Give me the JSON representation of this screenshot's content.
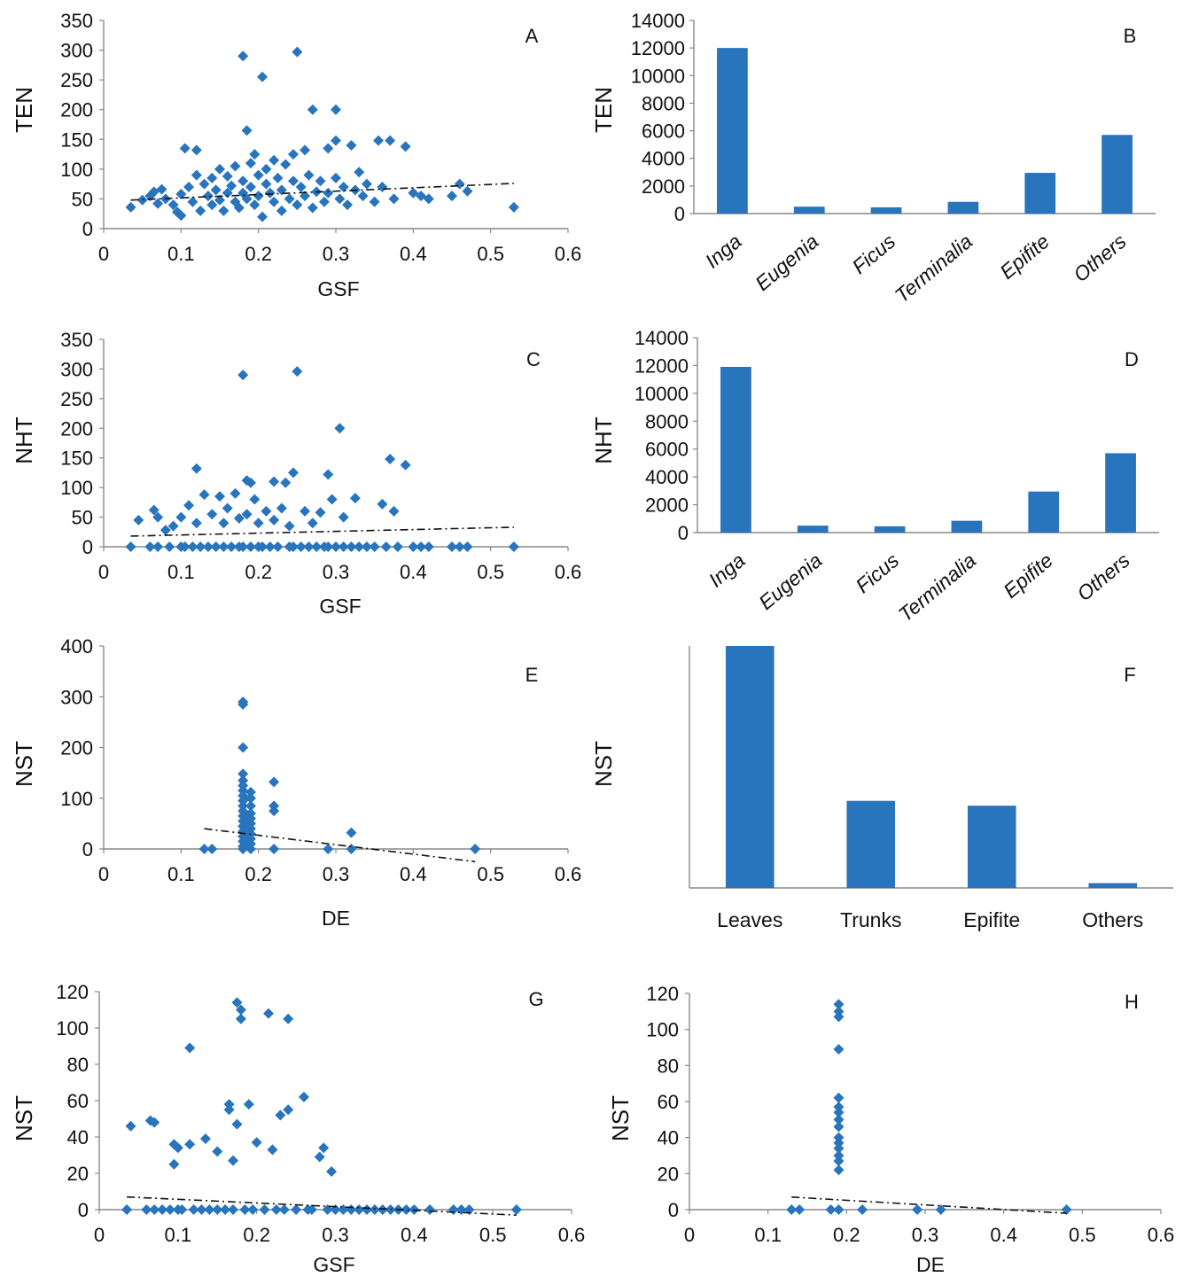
{
  "chart_data": [
    {
      "panel": "A",
      "type": "scatter",
      "xlabel": "GSF",
      "ylabel": "TEN",
      "xlim": [
        0,
        0.6
      ],
      "ylim": [
        0,
        350
      ],
      "xticks": [
        "0",
        "0.1",
        "0.2",
        "0.3",
        "0.4",
        "0.5",
        "0.6"
      ],
      "yticks": [
        "0",
        "50",
        "100",
        "150",
        "200",
        "250",
        "300",
        "350"
      ],
      "trend": [
        [
          0.035,
          48
        ],
        [
          0.53,
          76
        ]
      ],
      "points": [
        [
          0.035,
          36
        ],
        [
          0.05,
          48
        ],
        [
          0.06,
          55
        ],
        [
          0.065,
          62
        ],
        [
          0.07,
          42
        ],
        [
          0.075,
          66
        ],
        [
          0.08,
          50
        ],
        [
          0.09,
          40
        ],
        [
          0.095,
          28
        ],
        [
          0.1,
          58
        ],
        [
          0.1,
          22
        ],
        [
          0.105,
          135
        ],
        [
          0.11,
          70
        ],
        [
          0.115,
          45
        ],
        [
          0.12,
          132
        ],
        [
          0.12,
          90
        ],
        [
          0.125,
          30
        ],
        [
          0.13,
          75
        ],
        [
          0.135,
          55
        ],
        [
          0.14,
          40
        ],
        [
          0.14,
          85
        ],
        [
          0.145,
          65
        ],
        [
          0.15,
          100
        ],
        [
          0.15,
          48
        ],
        [
          0.155,
          30
        ],
        [
          0.16,
          88
        ],
        [
          0.16,
          60
        ],
        [
          0.165,
          72
        ],
        [
          0.17,
          45
        ],
        [
          0.17,
          105
        ],
        [
          0.175,
          35
        ],
        [
          0.18,
          290
        ],
        [
          0.18,
          60
        ],
        [
          0.18,
          80
        ],
        [
          0.185,
          165
        ],
        [
          0.185,
          50
        ],
        [
          0.19,
          110
        ],
        [
          0.19,
          70
        ],
        [
          0.195,
          125
        ],
        [
          0.195,
          40
        ],
        [
          0.2,
          90
        ],
        [
          0.2,
          55
        ],
        [
          0.205,
          255
        ],
        [
          0.205,
          20
        ],
        [
          0.21,
          75
        ],
        [
          0.21,
          100
        ],
        [
          0.215,
          60
        ],
        [
          0.22,
          115
        ],
        [
          0.22,
          45
        ],
        [
          0.225,
          85
        ],
        [
          0.23,
          30
        ],
        [
          0.23,
          65
        ],
        [
          0.235,
          108
        ],
        [
          0.24,
          50
        ],
        [
          0.245,
          125
        ],
        [
          0.245,
          80
        ],
        [
          0.25,
          297
        ],
        [
          0.25,
          40
        ],
        [
          0.255,
          70
        ],
        [
          0.26,
          132
        ],
        [
          0.26,
          55
        ],
        [
          0.265,
          90
        ],
        [
          0.27,
          200
        ],
        [
          0.27,
          35
        ],
        [
          0.275,
          62
        ],
        [
          0.28,
          80
        ],
        [
          0.285,
          45
        ],
        [
          0.29,
          135
        ],
        [
          0.29,
          60
        ],
        [
          0.3,
          200
        ],
        [
          0.3,
          148
        ],
        [
          0.3,
          85
        ],
        [
          0.305,
          50
        ],
        [
          0.31,
          70
        ],
        [
          0.315,
          40
        ],
        [
          0.32,
          140
        ],
        [
          0.325,
          65
        ],
        [
          0.33,
          95
        ],
        [
          0.335,
          55
        ],
        [
          0.34,
          75
        ],
        [
          0.35,
          45
        ],
        [
          0.355,
          148
        ],
        [
          0.36,
          70
        ],
        [
          0.37,
          148
        ],
        [
          0.375,
          50
        ],
        [
          0.39,
          138
        ],
        [
          0.4,
          60
        ],
        [
          0.41,
          55
        ],
        [
          0.42,
          50
        ],
        [
          0.45,
          55
        ],
        [
          0.46,
          75
        ],
        [
          0.47,
          63
        ],
        [
          0.53,
          36
        ]
      ]
    },
    {
      "panel": "B",
      "type": "bar",
      "ylabel": "TEN",
      "ylim": [
        0,
        14000
      ],
      "yticks": [
        "0",
        "2000",
        "4000",
        "6000",
        "8000",
        "10000",
        "12000",
        "14000"
      ],
      "categories": [
        "Inga",
        "Eugenia",
        "Ficus",
        "Terminalia",
        "Epifite",
        "Others"
      ],
      "values": [
        12000,
        500,
        450,
        850,
        2950,
        5700
      ]
    },
    {
      "panel": "C",
      "type": "scatter",
      "xlabel": "GSF",
      "ylabel": "NHT",
      "xlim": [
        0,
        0.6
      ],
      "ylim": [
        0,
        350
      ],
      "xticks": [
        "0",
        "0.1",
        "0.2",
        "0.3",
        "0.4",
        "0.5",
        "0.6"
      ],
      "yticks": [
        "0",
        "50",
        "100",
        "150",
        "200",
        "250",
        "300",
        "350"
      ],
      "trend": [
        [
          0.035,
          18
        ],
        [
          0.53,
          33
        ]
      ],
      "points": [
        [
          0.035,
          0
        ],
        [
          0.045,
          45
        ],
        [
          0.06,
          0
        ],
        [
          0.065,
          62
        ],
        [
          0.07,
          0
        ],
        [
          0.07,
          50
        ],
        [
          0.08,
          28
        ],
        [
          0.085,
          0
        ],
        [
          0.09,
          35
        ],
        [
          0.1,
          0
        ],
        [
          0.1,
          50
        ],
        [
          0.105,
          0
        ],
        [
          0.11,
          70
        ],
        [
          0.115,
          0
        ],
        [
          0.12,
          132
        ],
        [
          0.12,
          40
        ],
        [
          0.125,
          0
        ],
        [
          0.13,
          88
        ],
        [
          0.135,
          0
        ],
        [
          0.14,
          55
        ],
        [
          0.145,
          0
        ],
        [
          0.15,
          85
        ],
        [
          0.155,
          0
        ],
        [
          0.155,
          40
        ],
        [
          0.16,
          65
        ],
        [
          0.165,
          0
        ],
        [
          0.17,
          90
        ],
        [
          0.175,
          0
        ],
        [
          0.175,
          48
        ],
        [
          0.18,
          290
        ],
        [
          0.18,
          0
        ],
        [
          0.185,
          112
        ],
        [
          0.185,
          55
        ],
        [
          0.19,
          0
        ],
        [
          0.19,
          108
        ],
        [
          0.195,
          80
        ],
        [
          0.2,
          0
        ],
        [
          0.2,
          40
        ],
        [
          0.205,
          0
        ],
        [
          0.21,
          60
        ],
        [
          0.215,
          0
        ],
        [
          0.22,
          110
        ],
        [
          0.22,
          45
        ],
        [
          0.225,
          0
        ],
        [
          0.23,
          65
        ],
        [
          0.235,
          108
        ],
        [
          0.24,
          0
        ],
        [
          0.24,
          35
        ],
        [
          0.245,
          125
        ],
        [
          0.245,
          0
        ],
        [
          0.25,
          296
        ],
        [
          0.255,
          0
        ],
        [
          0.26,
          60
        ],
        [
          0.265,
          0
        ],
        [
          0.27,
          40
        ],
        [
          0.275,
          0
        ],
        [
          0.28,
          58
        ],
        [
          0.285,
          0
        ],
        [
          0.29,
          122
        ],
        [
          0.29,
          0
        ],
        [
          0.295,
          80
        ],
        [
          0.3,
          0
        ],
        [
          0.305,
          200
        ],
        [
          0.31,
          0
        ],
        [
          0.31,
          50
        ],
        [
          0.32,
          0
        ],
        [
          0.325,
          82
        ],
        [
          0.33,
          0
        ],
        [
          0.34,
          0
        ],
        [
          0.35,
          0
        ],
        [
          0.36,
          72
        ],
        [
          0.365,
          0
        ],
        [
          0.37,
          148
        ],
        [
          0.375,
          60
        ],
        [
          0.38,
          0
        ],
        [
          0.39,
          138
        ],
        [
          0.4,
          0
        ],
        [
          0.41,
          0
        ],
        [
          0.42,
          0
        ],
        [
          0.45,
          0
        ],
        [
          0.46,
          0
        ],
        [
          0.47,
          0
        ],
        [
          0.53,
          0
        ]
      ]
    },
    {
      "panel": "D",
      "type": "bar",
      "ylabel": "NHT",
      "ylim": [
        0,
        14000
      ],
      "yticks": [
        "0",
        "2000",
        "4000",
        "6000",
        "8000",
        "10000",
        "12000",
        "14000"
      ],
      "categories": [
        "Inga",
        "Eugenia",
        "Ficus",
        "Terminalia",
        "Epifite",
        "Others"
      ],
      "values": [
        11900,
        500,
        450,
        850,
        2950,
        5700
      ]
    },
    {
      "panel": "E",
      "type": "scatter",
      "xlabel": "DE",
      "ylabel": "NST",
      "xlim": [
        0,
        0.6
      ],
      "ylim": [
        0,
        400
      ],
      "xticks": [
        "0",
        "0.1",
        "0.2",
        "0.3",
        "0.4",
        "0.5",
        "0.6"
      ],
      "yticks": [
        "0",
        "100",
        "200",
        "300",
        "400"
      ],
      "trend": [
        [
          0.13,
          40
        ],
        [
          0.48,
          -25
        ]
      ],
      "points": [
        [
          0.13,
          0
        ],
        [
          0.14,
          0
        ],
        [
          0.18,
          290
        ],
        [
          0.18,
          285
        ],
        [
          0.18,
          200
        ],
        [
          0.18,
          148
        ],
        [
          0.18,
          135
        ],
        [
          0.18,
          125
        ],
        [
          0.18,
          115
        ],
        [
          0.18,
          105
        ],
        [
          0.18,
          95
        ],
        [
          0.18,
          85
        ],
        [
          0.18,
          75
        ],
        [
          0.18,
          65
        ],
        [
          0.18,
          55
        ],
        [
          0.18,
          45
        ],
        [
          0.18,
          35
        ],
        [
          0.18,
          25
        ],
        [
          0.18,
          15
        ],
        [
          0.18,
          5
        ],
        [
          0.18,
          0
        ],
        [
          0.19,
          112
        ],
        [
          0.19,
          100
        ],
        [
          0.19,
          85
        ],
        [
          0.19,
          70
        ],
        [
          0.19,
          60
        ],
        [
          0.19,
          50
        ],
        [
          0.19,
          40
        ],
        [
          0.19,
          30
        ],
        [
          0.19,
          20
        ],
        [
          0.19,
          10
        ],
        [
          0.19,
          0
        ],
        [
          0.22,
          132
        ],
        [
          0.22,
          85
        ],
        [
          0.22,
          75
        ],
        [
          0.22,
          0
        ],
        [
          0.29,
          0
        ],
        [
          0.32,
          32
        ],
        [
          0.32,
          0
        ],
        [
          0.48,
          0
        ]
      ]
    },
    {
      "panel": "F",
      "type": "bar",
      "ylabel": "NST",
      "ylim": [
        0,
        100
      ],
      "categories": [
        "Leaves",
        "Trunks",
        "Epifite",
        "Others"
      ],
      "values": [
        100,
        36,
        34,
        2
      ]
    },
    {
      "panel": "G",
      "type": "scatter",
      "xlabel": "GSF",
      "ylabel": "NST",
      "xlim": [
        0,
        0.6
      ],
      "ylim": [
        0,
        120
      ],
      "xticks": [
        "0",
        "0.1",
        "0.2",
        "0.3",
        "0.4",
        "0.5",
        "0.6"
      ],
      "yticks": [
        "0",
        "20",
        "40",
        "60",
        "80",
        "100",
        "120"
      ],
      "trend": [
        [
          0.035,
          7
        ],
        [
          0.53,
          -3
        ]
      ],
      "points": [
        [
          0.035,
          0
        ],
        [
          0.04,
          46
        ],
        [
          0.06,
          0
        ],
        [
          0.065,
          49
        ],
        [
          0.07,
          48
        ],
        [
          0.07,
          0
        ],
        [
          0.08,
          0
        ],
        [
          0.09,
          0
        ],
        [
          0.095,
          25
        ],
        [
          0.095,
          36
        ],
        [
          0.1,
          34
        ],
        [
          0.1,
          0
        ],
        [
          0.105,
          0
        ],
        [
          0.115,
          89
        ],
        [
          0.115,
          36
        ],
        [
          0.12,
          0
        ],
        [
          0.13,
          0
        ],
        [
          0.135,
          39
        ],
        [
          0.14,
          0
        ],
        [
          0.15,
          32
        ],
        [
          0.15,
          0
        ],
        [
          0.16,
          0
        ],
        [
          0.165,
          58
        ],
        [
          0.165,
          55
        ],
        [
          0.17,
          0
        ],
        [
          0.17,
          27
        ],
        [
          0.175,
          47
        ],
        [
          0.175,
          114
        ],
        [
          0.18,
          105
        ],
        [
          0.18,
          110
        ],
        [
          0.185,
          0
        ],
        [
          0.19,
          58
        ],
        [
          0.195,
          0
        ],
        [
          0.2,
          37
        ],
        [
          0.21,
          0
        ],
        [
          0.215,
          108
        ],
        [
          0.22,
          33
        ],
        [
          0.225,
          0
        ],
        [
          0.23,
          52
        ],
        [
          0.235,
          0
        ],
        [
          0.24,
          105
        ],
        [
          0.24,
          55
        ],
        [
          0.25,
          0
        ],
        [
          0.26,
          62
        ],
        [
          0.265,
          0
        ],
        [
          0.27,
          0
        ],
        [
          0.28,
          29
        ],
        [
          0.285,
          34
        ],
        [
          0.29,
          0
        ],
        [
          0.295,
          21
        ],
        [
          0.3,
          0
        ],
        [
          0.31,
          0
        ],
        [
          0.32,
          0
        ],
        [
          0.33,
          0
        ],
        [
          0.34,
          0
        ],
        [
          0.35,
          0
        ],
        [
          0.36,
          0
        ],
        [
          0.37,
          0
        ],
        [
          0.38,
          0
        ],
        [
          0.39,
          0
        ],
        [
          0.4,
          0
        ],
        [
          0.42,
          0
        ],
        [
          0.45,
          0
        ],
        [
          0.46,
          0
        ],
        [
          0.47,
          0
        ],
        [
          0.53,
          0
        ]
      ]
    },
    {
      "panel": "H",
      "type": "scatter",
      "xlabel": "DE",
      "ylabel": "NST",
      "xlim": [
        0,
        0.6
      ],
      "ylim": [
        0,
        120
      ],
      "xticks": [
        "0",
        "0.1",
        "0.2",
        "0.3",
        "0.4",
        "0.5",
        "0.6"
      ],
      "yticks": [
        "0",
        "20",
        "40",
        "60",
        "80",
        "100",
        "120"
      ],
      "trend": [
        [
          0.13,
          7
        ],
        [
          0.48,
          -2
        ]
      ],
      "points": [
        [
          0.13,
          0
        ],
        [
          0.14,
          0
        ],
        [
          0.18,
          0
        ],
        [
          0.19,
          0
        ],
        [
          0.19,
          114
        ],
        [
          0.19,
          110
        ],
        [
          0.19,
          107
        ],
        [
          0.19,
          89
        ],
        [
          0.19,
          62
        ],
        [
          0.19,
          57
        ],
        [
          0.19,
          54
        ],
        [
          0.19,
          50
        ],
        [
          0.19,
          46
        ],
        [
          0.19,
          40
        ],
        [
          0.19,
          37
        ],
        [
          0.19,
          34
        ],
        [
          0.19,
          30
        ],
        [
          0.19,
          27
        ],
        [
          0.19,
          22
        ],
        [
          0.22,
          0
        ],
        [
          0.29,
          0
        ],
        [
          0.32,
          0
        ],
        [
          0.48,
          0
        ]
      ]
    }
  ]
}
